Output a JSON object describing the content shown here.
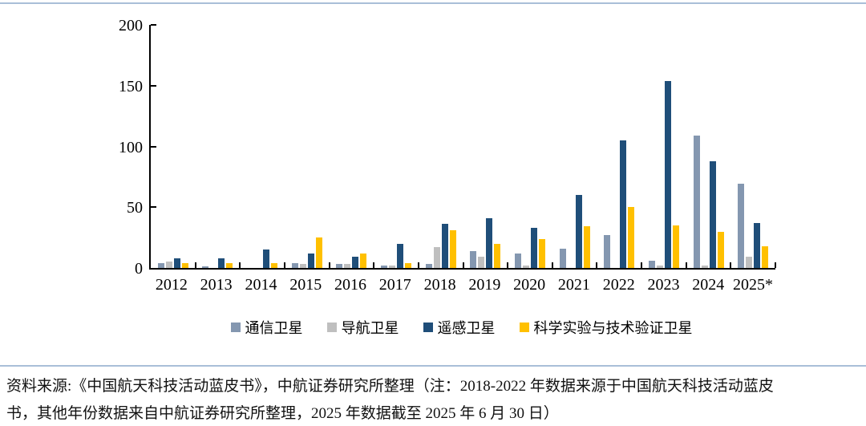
{
  "page": {
    "top_border_color": "#a9bfd8",
    "divider_color": "#a9bfd8",
    "axis_color": "#000000"
  },
  "chart_data": {
    "type": "bar",
    "title": "",
    "xlabel": "",
    "ylabel": "",
    "ylim": [
      0,
      200
    ],
    "yticks": [
      0,
      50,
      100,
      150,
      200
    ],
    "grid": false,
    "legend_position": "bottom",
    "categories": [
      "2012",
      "2013",
      "2014",
      "2015",
      "2016",
      "2017",
      "2018",
      "2019",
      "2020",
      "2021",
      "2022",
      "2023",
      "2024",
      "2025*"
    ],
    "series": [
      {
        "name": "通信卫星",
        "color": "#8497B0",
        "values": [
          4,
          1,
          0,
          4,
          3,
          2,
          3,
          14,
          12,
          16,
          27,
          6,
          109,
          69
        ]
      },
      {
        "name": "导航卫星",
        "color": "#BFBFBF",
        "values": [
          5,
          0,
          0,
          3,
          3,
          2,
          17,
          9,
          2,
          0,
          0,
          2,
          2,
          9
        ]
      },
      {
        "name": "遥感卫星",
        "color": "#1F4E79",
        "values": [
          8,
          8,
          15,
          12,
          9,
          20,
          36,
          41,
          33,
          60,
          105,
          154,
          88,
          37
        ]
      },
      {
        "name": "科学实验与技术验证卫星",
        "color": "#FFC000",
        "values": [
          4,
          4,
          4,
          25,
          12,
          4,
          31,
          20,
          24,
          34,
          50,
          35,
          30,
          18
        ]
      }
    ]
  },
  "footer": {
    "line1": "资料来源:《中国航天科技活动蓝皮书》，中航证券研究所整理（注：2018-2022 年数据来源于中国航天科技活动蓝皮",
    "line2": "书，其他年份数据来自中航证券研究所整理，2025 年数据截至 2025 年 6 月 30 日）"
  }
}
